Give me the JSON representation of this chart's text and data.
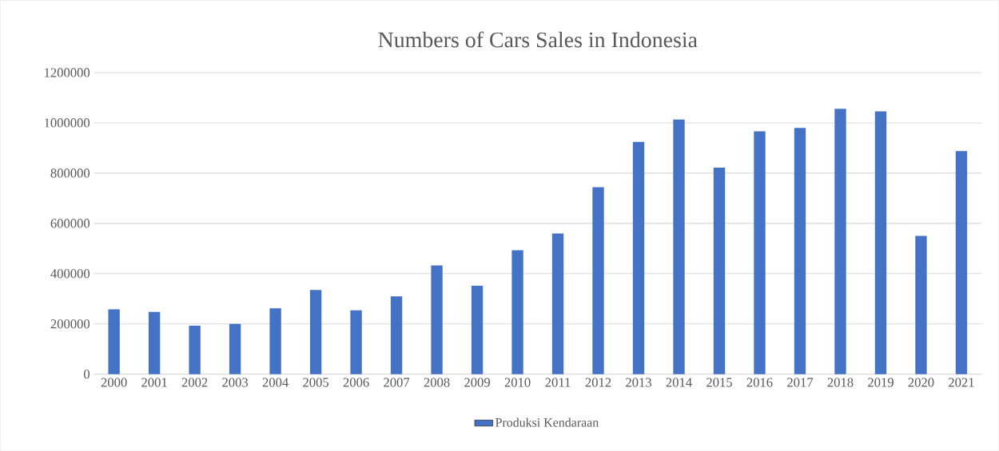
{
  "chart_data": {
    "type": "bar",
    "title": "Numbers of Cars Sales in Indonesia",
    "categories": [
      "2000",
      "2001",
      "2002",
      "2003",
      "2004",
      "2005",
      "2006",
      "2007",
      "2008",
      "2009",
      "2010",
      "2011",
      "2012",
      "2013",
      "2014",
      "2015",
      "2016",
      "2017",
      "2018",
      "2019",
      "2020",
      "2021"
    ],
    "series": [
      {
        "name": "Produksi Kendaraan",
        "color": "#4472c4",
        "values": [
          258000,
          248000,
          193000,
          200000,
          262000,
          335000,
          254000,
          310000,
          433000,
          352000,
          493000,
          560000,
          744000,
          924000,
          1013000,
          822000,
          966000,
          980000,
          1056000,
          1046000,
          550000,
          888000
        ]
      }
    ],
    "ylim": [
      0,
      1200000
    ],
    "yticks": [
      0,
      200000,
      400000,
      600000,
      800000,
      1000000,
      1200000
    ],
    "grid": "y",
    "legend": "bottom"
  }
}
